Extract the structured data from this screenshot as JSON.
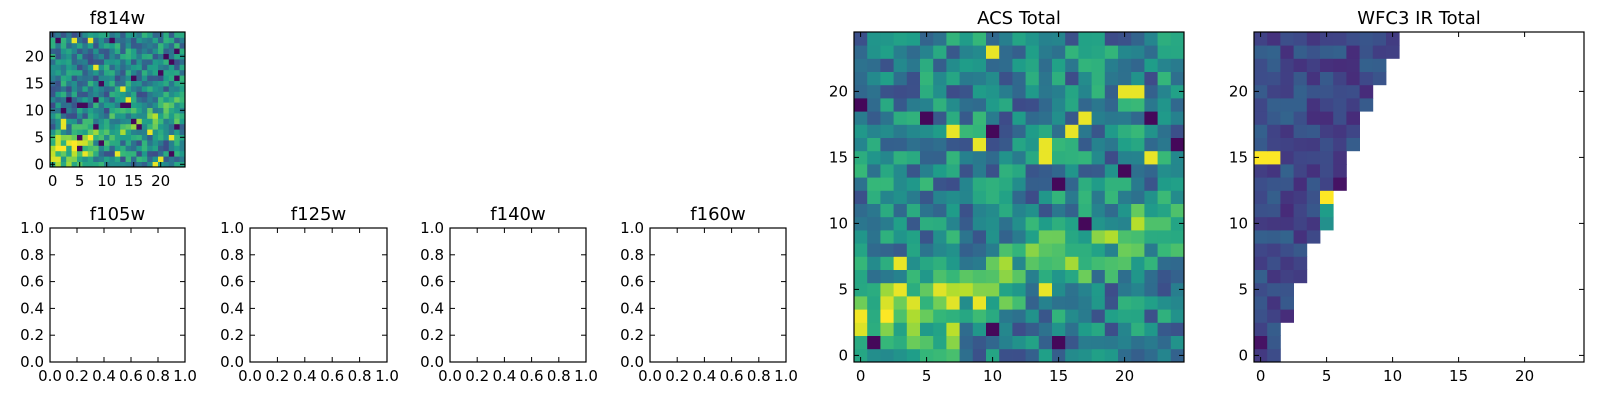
{
  "figure": {
    "colormap": "viridis"
  },
  "chart_data": [
    {
      "id": "f814w",
      "type": "heatmap",
      "title": "f814w",
      "rows": 25,
      "cols": 25,
      "xlim": [
        -0.5,
        24.5
      ],
      "ylim": [
        -0.5,
        24.5
      ],
      "xticks": [
        0,
        5,
        10,
        15,
        20
      ],
      "yticks": [
        0,
        5,
        10,
        15,
        20
      ],
      "seed": 7,
      "pattern": "acs"
    },
    {
      "id": "f105w",
      "type": "empty",
      "title": "f105w",
      "xlim": [
        0,
        1
      ],
      "ylim": [
        0,
        1
      ],
      "xticks": [
        "0.0",
        "0.2",
        "0.4",
        "0.6",
        "0.8",
        "1.0"
      ],
      "yticks": [
        "0.0",
        "0.2",
        "0.4",
        "0.6",
        "0.8",
        "1.0"
      ]
    },
    {
      "id": "f125w",
      "type": "empty",
      "title": "f125w",
      "xlim": [
        0,
        1
      ],
      "ylim": [
        0,
        1
      ],
      "xticks": [
        "0.0",
        "0.2",
        "0.4",
        "0.6",
        "0.8",
        "1.0"
      ],
      "yticks": [
        "0.0",
        "0.2",
        "0.4",
        "0.6",
        "0.8",
        "1.0"
      ]
    },
    {
      "id": "f140w",
      "type": "empty",
      "title": "f140w",
      "xlim": [
        0,
        1
      ],
      "ylim": [
        0,
        1
      ],
      "xticks": [
        "0.0",
        "0.2",
        "0.4",
        "0.6",
        "0.8",
        "1.0"
      ],
      "yticks": [
        "0.0",
        "0.2",
        "0.4",
        "0.6",
        "0.8",
        "1.0"
      ]
    },
    {
      "id": "f160w",
      "type": "empty",
      "title": "f160w",
      "xlim": [
        0,
        1
      ],
      "ylim": [
        0,
        1
      ],
      "xticks": [
        "0.0",
        "0.2",
        "0.4",
        "0.6",
        "0.8",
        "1.0"
      ],
      "yticks": [
        "0.0",
        "0.2",
        "0.4",
        "0.6",
        "0.8",
        "1.0"
      ]
    },
    {
      "id": "acs-total",
      "type": "heatmap",
      "title": "ACS Total",
      "rows": 25,
      "cols": 25,
      "xlim": [
        -0.5,
        24.5
      ],
      "ylim": [
        -0.5,
        24.5
      ],
      "xticks": [
        0,
        5,
        10,
        15,
        20
      ],
      "yticks": [
        0,
        5,
        10,
        15,
        20
      ],
      "seed": 11,
      "pattern": "acs"
    },
    {
      "id": "wfc3-ir-total",
      "type": "heatmap",
      "title": "WFC3 IR Total",
      "rows": 25,
      "cols": 25,
      "xlim": [
        -0.5,
        24.5
      ],
      "ylim": [
        -0.5,
        24.5
      ],
      "xticks": [
        0,
        5,
        10,
        15,
        20
      ],
      "yticks": [
        0,
        5,
        10,
        15,
        20
      ],
      "seed": 3,
      "pattern": "wfc3",
      "row_extent": [
        2,
        2,
        2,
        3,
        3,
        3,
        4,
        4,
        4,
        5,
        5,
        6,
        6,
        7,
        7,
        7,
        8,
        8,
        8,
        9,
        9,
        10,
        10,
        11,
        11
      ],
      "bright_cells": [
        [
          0,
          15,
          1.0
        ],
        [
          1,
          15,
          1.0
        ],
        [
          5,
          12,
          1.0
        ],
        [
          5,
          11,
          0.55
        ],
        [
          5,
          10,
          0.5
        ],
        [
          6,
          13,
          0.05
        ],
        [
          0,
          1,
          0.05
        ]
      ]
    }
  ]
}
